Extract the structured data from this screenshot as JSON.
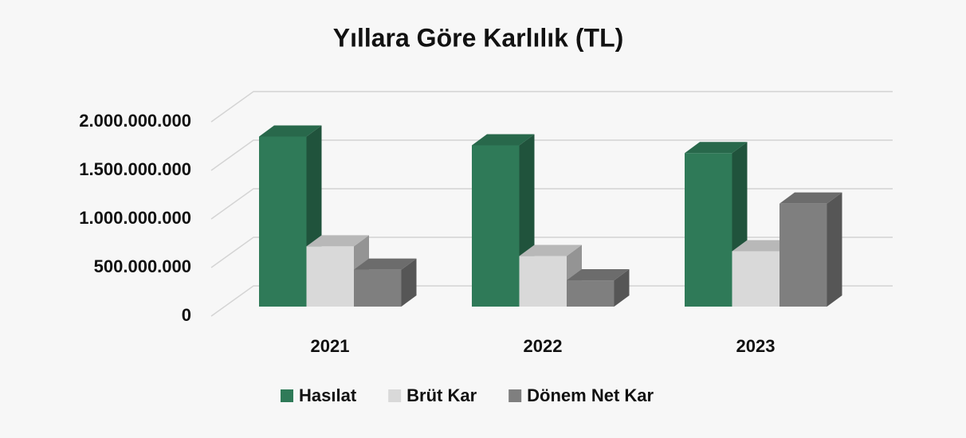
{
  "chart_data": {
    "type": "bar3d",
    "title": "Yıllara Göre Karlılık (TL)",
    "categories": [
      "2021",
      "2022",
      "2023"
    ],
    "series": [
      {
        "name": "Hasılat",
        "color": "#2f7a58",
        "values": [
          1750000000,
          1660000000,
          1580000000
        ]
      },
      {
        "name": "Brüt Kar",
        "color": "#d9d9d9",
        "values": [
          620000000,
          520000000,
          570000000
        ]
      },
      {
        "name": "Dönem Net Kar",
        "color": "#7f7f7f",
        "values": [
          380000000,
          270000000,
          1060000000
        ]
      }
    ],
    "ylim": [
      0,
      2000000000
    ],
    "yticks": [
      0,
      {
        "value": 500000000,
        "label": "500.000.000"
      },
      {
        "value": 1000000000,
        "label": "1.000.000.000"
      },
      {
        "value": 1500000000,
        "label": "1.500.000.000"
      },
      {
        "value": 2000000000,
        "label": "2.000.000.000"
      }
    ],
    "grid": true,
    "legend": "bottom"
  }
}
